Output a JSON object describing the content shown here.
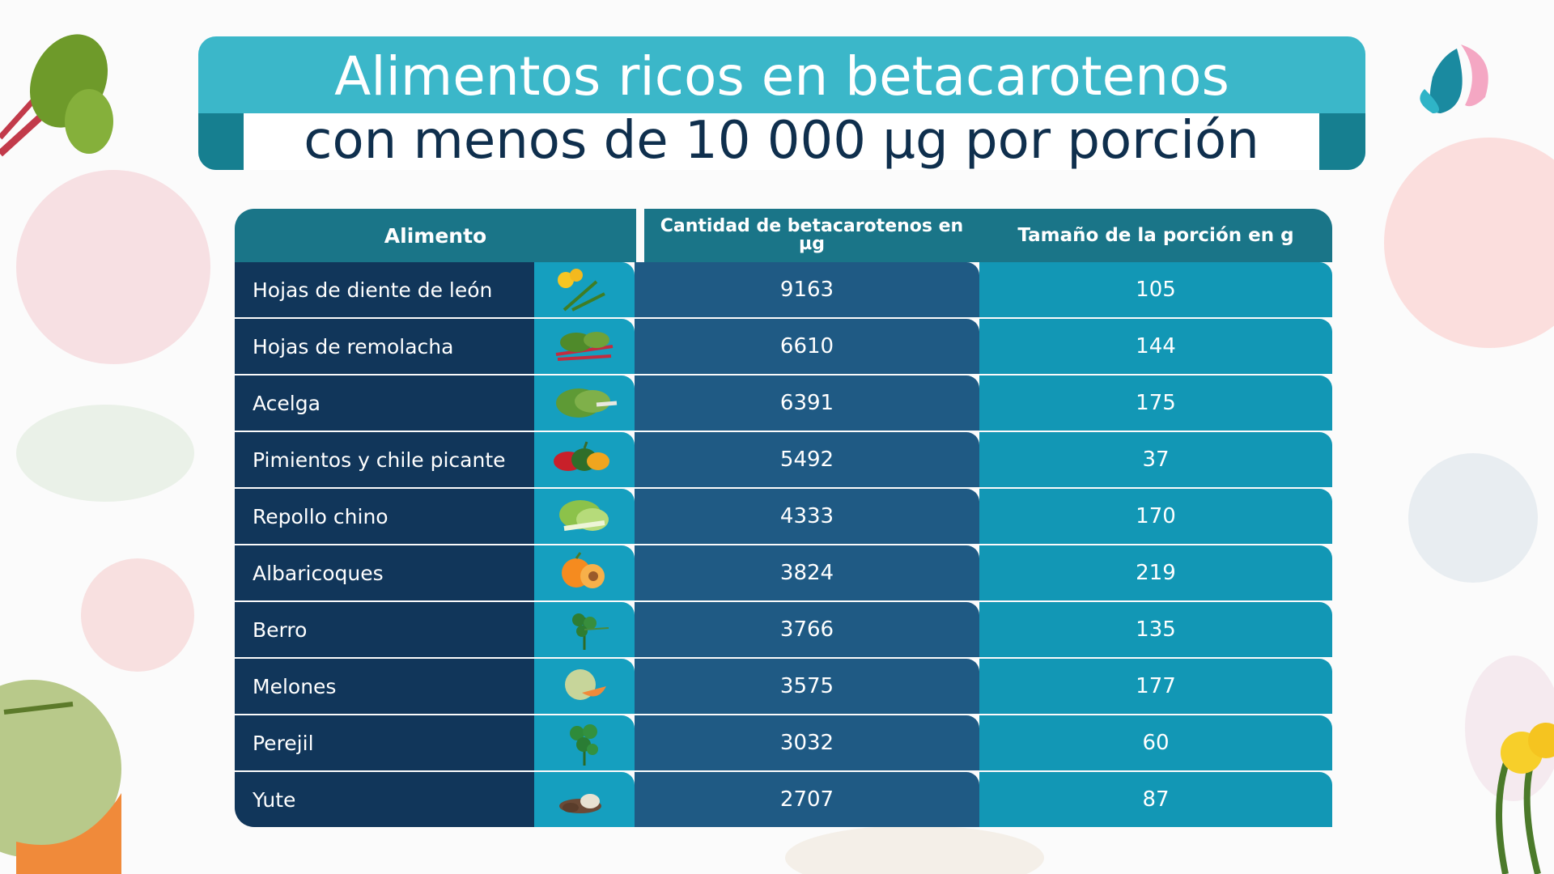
{
  "colors": {
    "header": "#1a7588",
    "name_col": "#11365a",
    "icon_col": "#159fbf",
    "value_col": "#1f5a84",
    "size_col": "#1297b5",
    "title_band": "#3bb7c9",
    "title_text_dark": "#0f2f4d"
  },
  "chart_data": {
    "type": "table",
    "title_line1": "Alimentos ricos en betacarotenos",
    "title_line2": "con menos de 10 000 µg por porción",
    "columns": [
      "Alimento",
      "Cantidad de betacarotenos en µg",
      "Tamaño de la porción en g"
    ],
    "rows": [
      {
        "name": "Hojas de diente de león",
        "icon": "dandelion-icon",
        "beta_ug": "9163",
        "portion_g": "105"
      },
      {
        "name": "Hojas de remolacha",
        "icon": "beet-leaves-icon",
        "beta_ug": "6610",
        "portion_g": "144"
      },
      {
        "name": "Acelga",
        "icon": "chard-icon",
        "beta_ug": "6391",
        "portion_g": "175"
      },
      {
        "name": "Pimientos y chile picante",
        "icon": "peppers-icon",
        "beta_ug": "5492",
        "portion_g": "37"
      },
      {
        "name": "Repollo chino",
        "icon": "bok-choy-icon",
        "beta_ug": "4333",
        "portion_g": "170"
      },
      {
        "name": "Albaricoques",
        "icon": "apricot-icon",
        "beta_ug": "3824",
        "portion_g": "219"
      },
      {
        "name": "Berro",
        "icon": "watercress-icon",
        "beta_ug": "3766",
        "portion_g": "135"
      },
      {
        "name": "Melones",
        "icon": "melon-icon",
        "beta_ug": "3575",
        "portion_g": "177"
      },
      {
        "name": "Perejil",
        "icon": "parsley-icon",
        "beta_ug": "3032",
        "portion_g": "60"
      },
      {
        "name": "Yute",
        "icon": "jute-root-icon",
        "beta_ug": "2707",
        "portion_g": "87"
      }
    ]
  }
}
